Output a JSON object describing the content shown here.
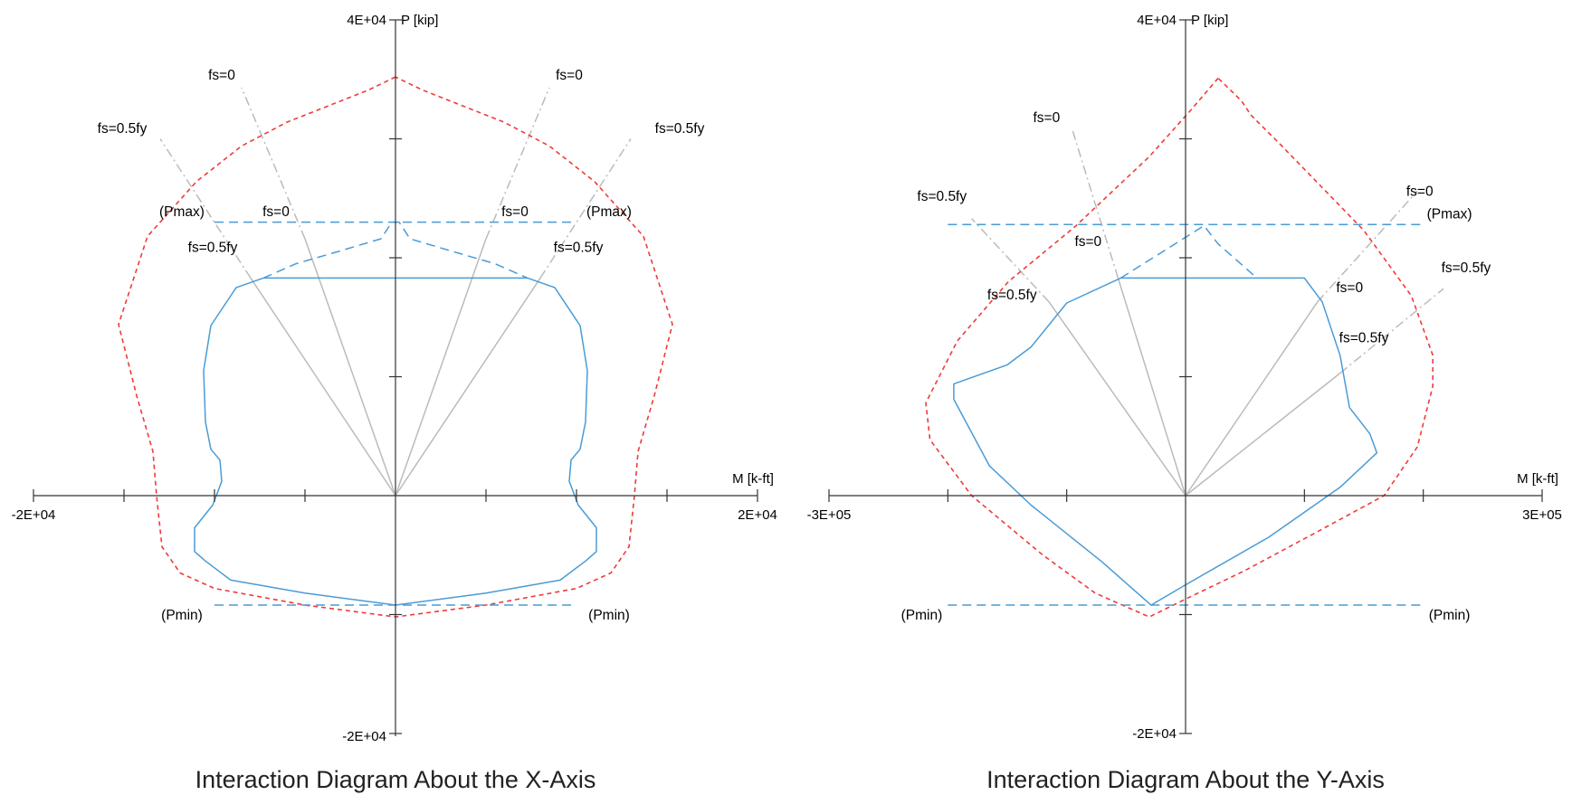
{
  "chart_data": [
    {
      "type": "line",
      "title": "Interaction Diagram About the X-Axis",
      "xlabel": "M [k-ft]",
      "ylabel": "P [kip]",
      "xlim": [
        -20000,
        20000
      ],
      "ylim": [
        -20000,
        40000
      ],
      "x_tick_labels": {
        "min": "-2E+04",
        "max": "2E+04"
      },
      "y_tick_labels": {
        "max": "4E+04",
        "min": "-2E+04"
      },
      "x_ticks": [
        -20000,
        -15000,
        -10000,
        -5000,
        5000,
        10000,
        15000,
        20000
      ],
      "y_ticks": [
        -20000,
        -10000,
        10000,
        20000,
        30000,
        40000
      ],
      "grid": false,
      "series": [
        {
          "role": "nominal",
          "style": "dashed",
          "color": "#ee3b3b",
          "points": [
            [
              0,
              35200
            ],
            [
              -1500,
              34100
            ],
            [
              -3500,
              32900
            ],
            [
              -6000,
              31400
            ],
            [
              -8500,
              29400
            ],
            [
              -11000,
              26400
            ],
            [
              -13700,
              21800
            ],
            [
              -15300,
              14400
            ],
            [
              -14300,
              8400
            ],
            [
              -13400,
              3700
            ],
            [
              -13200,
              0
            ],
            [
              -12900,
              -4300
            ],
            [
              -11900,
              -6500
            ],
            [
              -10000,
              -7800
            ],
            [
              -5000,
              -9200
            ],
            [
              0,
              -10200
            ],
            [
              5000,
              -9200
            ],
            [
              10000,
              -7800
            ],
            [
              11900,
              -6500
            ],
            [
              12900,
              -4300
            ],
            [
              13200,
              0
            ],
            [
              13400,
              3700
            ],
            [
              14300,
              8400
            ],
            [
              15300,
              14400
            ],
            [
              13700,
              21800
            ],
            [
              11000,
              26400
            ],
            [
              8500,
              29400
            ],
            [
              6000,
              31400
            ],
            [
              3500,
              32900
            ],
            [
              1500,
              34100
            ],
            [
              0,
              35200
            ]
          ]
        },
        {
          "role": "design",
          "style": "solid",
          "color": "#4a9bd6",
          "points": [
            [
              -7300,
              18300
            ],
            [
              -8800,
              17500
            ],
            [
              -10200,
              14300
            ],
            [
              -10600,
              10500
            ],
            [
              -10500,
              6200
            ],
            [
              -10200,
              3900
            ],
            [
              -9700,
              3000
            ],
            [
              -9600,
              1200
            ],
            [
              -10100,
              -800
            ],
            [
              -11100,
              -2700
            ],
            [
              -11100,
              -4700
            ],
            [
              -10500,
              -5500
            ],
            [
              -9100,
              -7100
            ],
            [
              -5000,
              -8200
            ],
            [
              0,
              -9200
            ],
            [
              5000,
              -8200
            ],
            [
              9100,
              -7100
            ],
            [
              10500,
              -5500
            ],
            [
              11100,
              -4700
            ],
            [
              11100,
              -2700
            ],
            [
              10100,
              -800
            ],
            [
              9600,
              1200
            ],
            [
              9700,
              3000
            ],
            [
              10200,
              3900
            ],
            [
              10500,
              6200
            ],
            [
              10600,
              10500
            ],
            [
              10200,
              14300
            ],
            [
              8800,
              17500
            ],
            [
              7300,
              18300
            ],
            [
              -7300,
              18300
            ]
          ]
        },
        {
          "role": "pmax-cap",
          "style": "dashed",
          "color": "#4a9bd6",
          "points": [
            [
              -7300,
              18300
            ],
            [
              -5500,
              19500
            ],
            [
              -3000,
              20600
            ],
            [
              -800,
              21600
            ],
            [
              -200,
              23000
            ],
            [
              200,
              23000
            ],
            [
              800,
              21600
            ],
            [
              3000,
              20600
            ],
            [
              5500,
              19500
            ],
            [
              7300,
              18300
            ]
          ]
        },
        {
          "role": "pmax-line",
          "style": "dashed",
          "color": "#4a9bd6",
          "points": [
            [
              -10000,
              23000
            ],
            [
              10000,
              23000
            ]
          ]
        },
        {
          "role": "pmin-line",
          "style": "dashed",
          "color": "#4a9bd6",
          "points": [
            [
              -10000,
              -9200
            ],
            [
              10000,
              -9200
            ]
          ]
        }
      ],
      "guides": [
        {
          "color": "#bbbbbb",
          "points": [
            [
              0,
              0
            ],
            [
              -8000,
              18300
            ]
          ]
        },
        {
          "color": "#bbbbbb",
          "points": [
            [
              0,
              0
            ],
            [
              -5000,
              21600
            ]
          ]
        },
        {
          "color": "#bbbbbb",
          "points": [
            [
              0,
              0
            ],
            [
              5000,
              21600
            ]
          ]
        },
        {
          "color": "#bbbbbb",
          "points": [
            [
              0,
              0
            ],
            [
              8000,
              18300
            ]
          ]
        },
        {
          "color": "#bbbbbb",
          "dashed": true,
          "points": [
            [
              -8000,
              18300
            ],
            [
              -13000,
              30000
            ]
          ]
        },
        {
          "color": "#bbbbbb",
          "dashed": true,
          "points": [
            [
              -5000,
              21600
            ],
            [
              -8500,
              34300
            ]
          ]
        },
        {
          "color": "#bbbbbb",
          "dashed": true,
          "points": [
            [
              5000,
              21600
            ],
            [
              8500,
              34300
            ]
          ]
        },
        {
          "color": "#bbbbbb",
          "dashed": true,
          "points": [
            [
              8000,
              18300
            ],
            [
              13000,
              30000
            ]
          ]
        }
      ],
      "annotations": [
        {
          "text": "fs=0",
          "x": -9600,
          "y": 35000
        },
        {
          "text": "fs=0",
          "x": 9600,
          "y": 35000
        },
        {
          "text": "fs=0.5fy",
          "x": -15100,
          "y": 30500
        },
        {
          "text": "fs=0.5fy",
          "x": 15700,
          "y": 30500
        },
        {
          "text": "(Pmax)",
          "x": -11800,
          "y": 23500
        },
        {
          "text": "(Pmax)",
          "x": 11800,
          "y": 23500
        },
        {
          "text": "fs=0",
          "x": -6600,
          "y": 23500
        },
        {
          "text": "fs=0",
          "x": 6600,
          "y": 23500
        },
        {
          "text": "fs=0.5fy",
          "x": -10100,
          "y": 20500
        },
        {
          "text": "fs=0.5fy",
          "x": 10100,
          "y": 20500
        },
        {
          "text": "(Pmin)",
          "x": -11800,
          "y": -10400
        },
        {
          "text": "(Pmin)",
          "x": 11800,
          "y": -10400
        }
      ]
    },
    {
      "type": "line",
      "title": "Interaction Diagram About the Y-Axis",
      "xlabel": "M [k-ft]",
      "ylabel": "P [kip]",
      "xlim": [
        -300000,
        300000
      ],
      "ylim": [
        -20000,
        40000
      ],
      "x_tick_labels": {
        "min": "-3E+05",
        "max": "3E+05"
      },
      "y_tick_labels": {
        "max": "4E+04",
        "min": "-2E+04"
      },
      "x_ticks": [
        -300000,
        -200000,
        -100000,
        100000,
        200000,
        300000
      ],
      "y_ticks": [
        -20000,
        -10000,
        10000,
        20000,
        30000,
        40000
      ],
      "grid": false,
      "series": [
        {
          "role": "nominal",
          "style": "dashed",
          "color": "#ee3b3b",
          "points": [
            [
              27400,
              35100
            ],
            [
              5200,
              32500
            ],
            [
              -30500,
              28500
            ],
            [
              -93200,
              22600
            ],
            [
              -149000,
              18000
            ],
            [
              -192000,
              13000
            ],
            [
              -218500,
              7800
            ],
            [
              -215000,
              4700
            ],
            [
              -180000,
              0
            ],
            [
              -120000,
              -5000
            ],
            [
              -76000,
              -8200
            ],
            [
              -30500,
              -10200
            ],
            [
              0,
              -8700
            ],
            [
              50000,
              -6300
            ],
            [
              106000,
              -3300
            ],
            [
              167000,
              0
            ],
            [
              195000,
              4100
            ],
            [
              208000,
              9200
            ],
            [
              208000,
              11800
            ],
            [
              190000,
              16800
            ],
            [
              150000,
              22300
            ],
            [
              80000,
              29500
            ],
            [
              55000,
              32000
            ],
            [
              47000,
              33200
            ],
            [
              27400,
              35100
            ]
          ]
        },
        {
          "role": "design",
          "style": "solid",
          "color": "#4a9bd6",
          "points": [
            [
              -54500,
              18300
            ],
            [
              -100000,
              16200
            ],
            [
              -130000,
              12500
            ],
            [
              -150000,
              11000
            ],
            [
              -195000,
              9400
            ],
            [
              -195000,
              8100
            ],
            [
              -165000,
              2500
            ],
            [
              -130000,
              -800
            ],
            [
              -70000,
              -5600
            ],
            [
              -29000,
              -9200
            ],
            [
              0,
              -7500
            ],
            [
              70000,
              -3500
            ],
            [
              130000,
              700
            ],
            [
              161000,
              3600
            ],
            [
              155000,
              5200
            ],
            [
              138000,
              7400
            ],
            [
              130000,
              11800
            ],
            [
              115000,
              16300
            ],
            [
              100000,
              18300
            ],
            [
              -54500,
              18300
            ]
          ]
        },
        {
          "role": "pmax-cap",
          "style": "dashed",
          "color": "#4a9bd6",
          "points": [
            [
              -54500,
              18300
            ],
            [
              15500,
              22700
            ],
            [
              27000,
              21200
            ],
            [
              60000,
              18300
            ]
          ]
        },
        {
          "role": "pmax-line",
          "style": "dashed",
          "color": "#4a9bd6",
          "points": [
            [
              -200000,
              22800
            ],
            [
              200000,
              22800
            ]
          ]
        },
        {
          "role": "pmin-line",
          "style": "dashed",
          "color": "#4a9bd6",
          "points": [
            [
              -200000,
              -9200
            ],
            [
              200000,
              -9200
            ]
          ]
        }
      ],
      "guides": [
        {
          "color": "#bbbbbb",
          "points": [
            [
              0,
              0
            ],
            [
              -115000,
              16300
            ]
          ]
        },
        {
          "color": "#bbbbbb",
          "points": [
            [
              0,
              0
            ],
            [
              -56800,
              18300
            ]
          ]
        },
        {
          "color": "#bbbbbb",
          "points": [
            [
              0,
              0
            ],
            [
              111000,
              16300
            ]
          ]
        },
        {
          "color": "#bbbbbb",
          "points": [
            [
              0,
              0
            ],
            [
              130000,
              10300
            ]
          ]
        },
        {
          "color": "#bbbbbb",
          "dashed": true,
          "points": [
            [
              -115000,
              16300
            ],
            [
              -180000,
              23300
            ]
          ]
        },
        {
          "color": "#bbbbbb",
          "dashed": true,
          "points": [
            [
              -56800,
              18300
            ],
            [
              -95000,
              30700
            ]
          ]
        },
        {
          "color": "#bbbbbb",
          "dashed": true,
          "points": [
            [
              111000,
              16300
            ],
            [
              195000,
              25600
            ]
          ]
        },
        {
          "color": "#bbbbbb",
          "dashed": true,
          "points": [
            [
              130000,
              10300
            ],
            [
              217000,
              17400
            ]
          ]
        }
      ],
      "annotations": [
        {
          "text": "fs=0",
          "x": -117000,
          "y": 31400
        },
        {
          "text": "fs=0.5fy",
          "x": -205000,
          "y": 24800
        },
        {
          "text": "fs=0",
          "x": -82000,
          "y": 21000
        },
        {
          "text": "fs=0.5fy",
          "x": -146000,
          "y": 16500
        },
        {
          "text": "fs=0",
          "x": 197000,
          "y": 25200
        },
        {
          "text": "(Pmax)",
          "x": 222000,
          "y": 23300
        },
        {
          "text": "fs=0.5fy",
          "x": 236000,
          "y": 18800
        },
        {
          "text": "fs=0",
          "x": 138000,
          "y": 17100
        },
        {
          "text": "fs=0.5fy",
          "x": 150000,
          "y": 12900
        },
        {
          "text": "(Pmin)",
          "x": -222000,
          "y": -10400
        },
        {
          "text": "(Pmin)",
          "x": 222000,
          "y": -10400
        }
      ]
    }
  ]
}
